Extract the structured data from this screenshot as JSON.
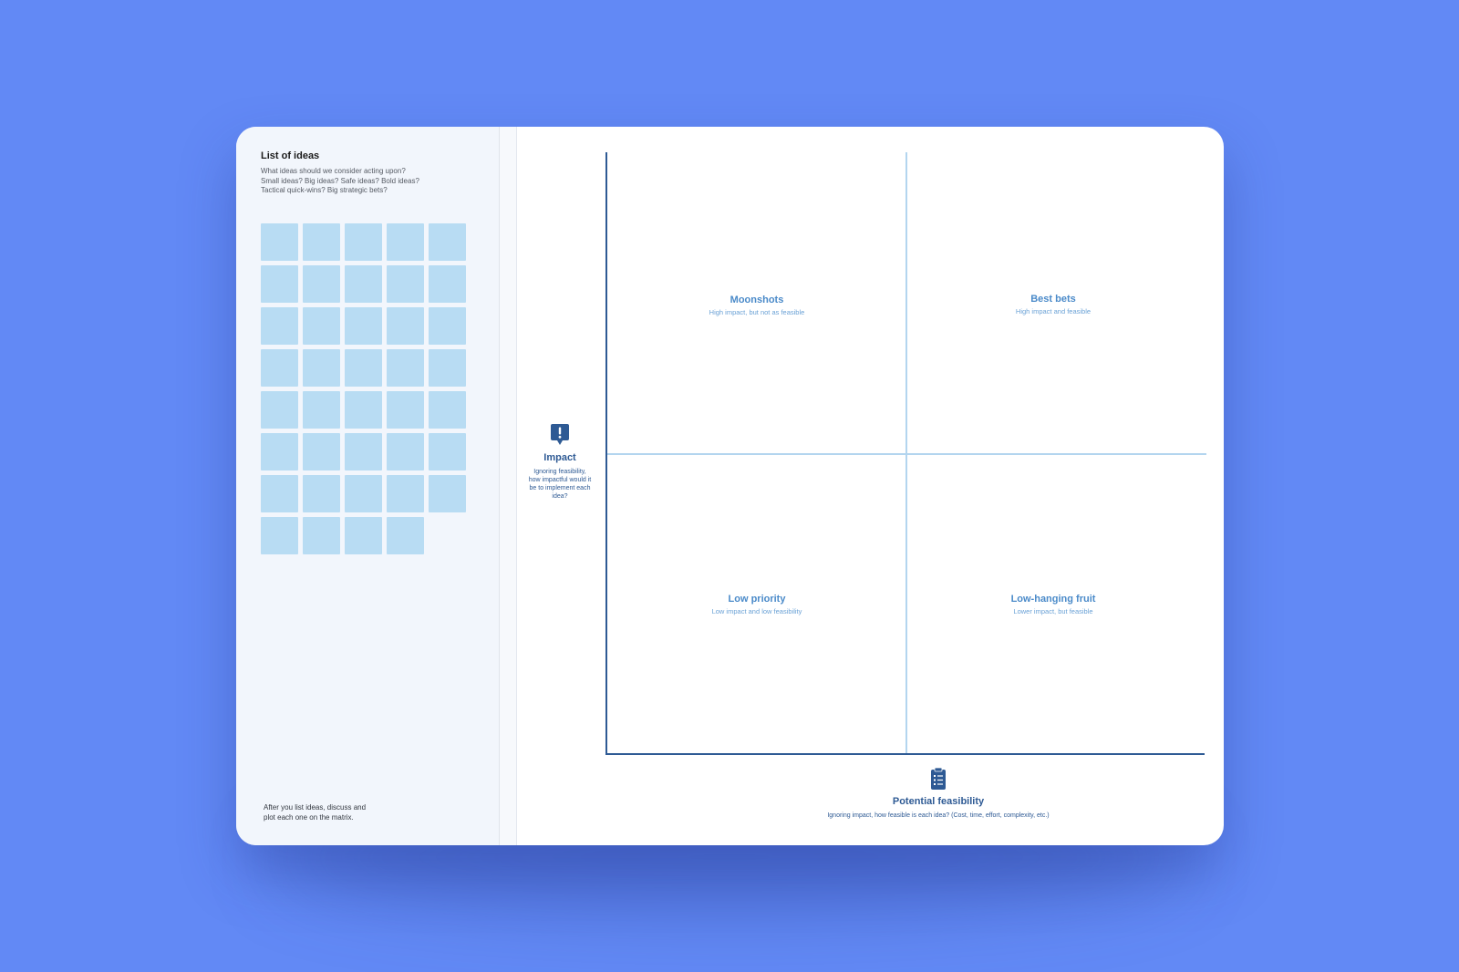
{
  "panel": {
    "title": "List of ideas",
    "description": "What ideas should we consider acting upon?\nSmall ideas? Big ideas? Safe ideas? Bold ideas?\nTactical quick-wins? Big strategic bets?",
    "note_count": 39,
    "footer": "After you list ideas, discuss and\nplot each one on the matrix."
  },
  "matrix": {
    "quadrants": {
      "top_left": {
        "title": "Moonshots",
        "subtitle": "High impact, but not as feasible"
      },
      "top_right": {
        "title": "Best bets",
        "subtitle": "High impact and feasible"
      },
      "bottom_left": {
        "title": "Low priority",
        "subtitle": "Low impact and low feasibility"
      },
      "bottom_right": {
        "title": "Low-hanging fruit",
        "subtitle": "Lower impact, but feasible"
      }
    },
    "y_axis": {
      "icon": "exclamation-speech-icon",
      "title": "Impact",
      "description": "Ignoring feasibility, how impactful would it be to implement each idea?"
    },
    "x_axis": {
      "icon": "clipboard-checklist-icon",
      "title": "Potential feasibility",
      "description": "Ignoring impact, how feasible is each idea? (Cost, time, effort, complexity, etc.)"
    }
  },
  "colors": {
    "background": "#6289f5",
    "note": "#b8dcf3",
    "axis": "#2e5a94",
    "quadrant_text": "#4a8ac9"
  }
}
